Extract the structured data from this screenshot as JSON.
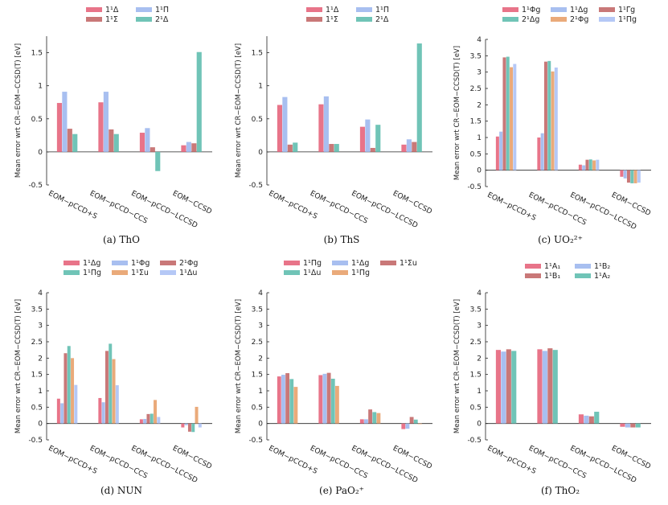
{
  "colors": {
    "pink": "#e87489",
    "lightblue": "#a8bff0",
    "rose": "#c97878",
    "teal": "#70c4b7",
    "orange": "#eaaa7a",
    "lavender": "#b5c8f6"
  },
  "chart_data": [
    {
      "type": "bar",
      "caption": "(a) ThO",
      "ylabel": "Mean error wrt CR−EOM−CCSD(T) [eV]",
      "ylim": [
        -0.5,
        1.75
      ],
      "yticks": [
        -0.5,
        0,
        0.5,
        1,
        1.5
      ],
      "yticklabels": [
        "-0.5",
        "0",
        "0.5",
        "1",
        "1.5"
      ],
      "categories": [
        "EOM−pCCD+S",
        "EOM−pCCD−CCS",
        "EOM−pCCD−LCCSD",
        "EOM−CCSD"
      ],
      "legend_ncol": 2,
      "series": [
        {
          "name": "1¹Δ",
          "color": "#e87489",
          "values": [
            0.74,
            0.75,
            0.29,
            0.1
          ]
        },
        {
          "name": "1¹Π",
          "color": "#a8bff0",
          "values": [
            0.91,
            0.91,
            0.36,
            0.15
          ]
        },
        {
          "name": "1¹Σ",
          "color": "#c97878",
          "values": [
            0.35,
            0.34,
            0.07,
            0.13
          ]
        },
        {
          "name": "2¹Δ",
          "color": "#70c4b7",
          "values": [
            0.27,
            0.27,
            -0.29,
            1.51
          ]
        }
      ]
    },
    {
      "type": "bar",
      "caption": "(b) ThS",
      "ylabel": "Mean error wrt CR−EOM−CCSD(T) [eV]",
      "ylim": [
        -0.5,
        1.75
      ],
      "yticks": [
        -0.5,
        0,
        0.5,
        1,
        1.5
      ],
      "yticklabels": [
        "-0.5",
        "0",
        "0.5",
        "1",
        "1.5"
      ],
      "categories": [
        "EOM−pCCD+S",
        "EOM−pCCD−CCS",
        "EOM−pCCD−LCCSD",
        "EOM−CCSD"
      ],
      "legend_ncol": 2,
      "series": [
        {
          "name": "1¹Δ",
          "color": "#e87489",
          "values": [
            0.71,
            0.72,
            0.38,
            0.11
          ]
        },
        {
          "name": "1¹Π",
          "color": "#a8bff0",
          "values": [
            0.83,
            0.84,
            0.49,
            0.19
          ]
        },
        {
          "name": "1¹Σ",
          "color": "#c97878",
          "values": [
            0.11,
            0.12,
            0.06,
            0.15
          ]
        },
        {
          "name": "2¹Δ",
          "color": "#70c4b7",
          "values": [
            0.14,
            0.12,
            0.41,
            1.64
          ]
        }
      ]
    },
    {
      "type": "bar",
      "caption": "(c) UO₂²⁺",
      "ylabel": "Mean error wrt CR−EOM−CCSD(T) [eV]",
      "ylim": [
        -0.5,
        4
      ],
      "yticks": [
        -0.5,
        0,
        0.5,
        1,
        1.5,
        2,
        2.5,
        3,
        3.5,
        4
      ],
      "yticklabels": [
        "-0.5",
        "0",
        "0.5",
        "1",
        "1.5",
        "2",
        "2.5",
        "3",
        "3.5",
        "4"
      ],
      "categories": [
        "EOM−pCCD+S",
        "EOM−pCCD−CCS",
        "EOM−pCCD−LCCSD",
        "EOM−CCSD"
      ],
      "legend_ncol": 3,
      "series": [
        {
          "name": "1¹Φg",
          "color": "#e87489",
          "values": [
            1.03,
            1.0,
            0.17,
            -0.2
          ]
        },
        {
          "name": "1¹Δg",
          "color": "#a8bff0",
          "values": [
            1.18,
            1.13,
            0.15,
            -0.25
          ]
        },
        {
          "name": "1¹Γg",
          "color": "#c97878",
          "values": [
            3.45,
            3.32,
            0.32,
            -0.38
          ]
        },
        {
          "name": "2¹Δg",
          "color": "#70c4b7",
          "values": [
            3.47,
            3.34,
            0.33,
            -0.4
          ]
        },
        {
          "name": "2¹Φg",
          "color": "#eaaa7a",
          "values": [
            3.15,
            3.02,
            0.3,
            -0.4
          ]
        },
        {
          "name": "1¹Πg",
          "color": "#b5c8f6",
          "values": [
            3.25,
            3.14,
            0.32,
            -0.38
          ]
        }
      ]
    },
    {
      "type": "bar",
      "caption": "(d) NUN",
      "ylabel": "Mean error wrt CR−EOM−CCSD(T) [eV]",
      "ylim": [
        -0.5,
        4
      ],
      "yticks": [
        -0.5,
        0,
        0.5,
        1,
        1.5,
        2,
        2.5,
        3,
        3.5,
        4
      ],
      "yticklabels": [
        "-0.5",
        "0",
        "0.5",
        "1",
        "1.5",
        "2",
        "2.5",
        "3",
        "3.5",
        "4"
      ],
      "categories": [
        "EOM−pCCD+S",
        "EOM−pCCD−CCS",
        "EOM−pCCD−LCCSD",
        "EOM−CCSD"
      ],
      "legend_ncol": 3,
      "series": [
        {
          "name": "1¹Δg",
          "color": "#e87489",
          "values": [
            0.76,
            0.78,
            0.13,
            -0.12
          ]
        },
        {
          "name": "1¹Φg",
          "color": "#a8bff0",
          "values": [
            0.62,
            0.65,
            0.14,
            -0.05
          ]
        },
        {
          "name": "2¹Φg",
          "color": "#c97878",
          "values": [
            2.15,
            2.22,
            0.29,
            -0.25
          ]
        },
        {
          "name": "1¹Πg",
          "color": "#70c4b7",
          "values": [
            2.37,
            2.44,
            0.3,
            -0.26
          ]
        },
        {
          "name": "1¹Σu",
          "color": "#eaaa7a",
          "values": [
            2.0,
            1.97,
            0.72,
            0.51
          ]
        },
        {
          "name": "1¹Δu",
          "color": "#b5c8f6",
          "values": [
            1.18,
            1.17,
            0.2,
            -0.12
          ]
        }
      ]
    },
    {
      "type": "bar",
      "caption": "(e) PaO₂⁺",
      "ylabel": "Mean error wrt CR−EOM−CCSD(T) [eV]",
      "ylim": [
        -0.5,
        4
      ],
      "yticks": [
        -0.5,
        0,
        0.5,
        1,
        1.5,
        2,
        2.5,
        3,
        3.5,
        4
      ],
      "yticklabels": [
        "-0.5",
        "0",
        "0.5",
        "1",
        "1.5",
        "2",
        "2.5",
        "3",
        "3.5",
        "4"
      ],
      "categories": [
        "EOM−pCCD+S",
        "EOM−pCCD−CCS",
        "EOM−pCCD−LCCSD",
        "EOM−CCSD"
      ],
      "legend_ncol": 3,
      "series": [
        {
          "name": "1¹Πg",
          "color": "#e87489",
          "values": [
            1.44,
            1.48,
            0.13,
            -0.17
          ]
        },
        {
          "name": "1¹Δg",
          "color": "#a8bff0",
          "values": [
            1.49,
            1.52,
            0.13,
            -0.16
          ]
        },
        {
          "name": "1¹Σu",
          "color": "#c97878",
          "values": [
            1.54,
            1.55,
            0.43,
            0.2
          ]
        },
        {
          "name": "1¹Δu",
          "color": "#70c4b7",
          "values": [
            1.36,
            1.37,
            0.35,
            0.12
          ]
        },
        {
          "name": "1¹Πg",
          "color": "#eaaa7a",
          "values": [
            1.12,
            1.15,
            0.32,
            -0.02
          ]
        }
      ]
    },
    {
      "type": "bar",
      "caption": "(f) ThO₂",
      "ylabel": "Mean error wrt CR−EOM−CCSD(T) [eV]",
      "ylim": [
        -0.5,
        4
      ],
      "yticks": [
        -0.5,
        0,
        0.5,
        1,
        1.5,
        2,
        2.5,
        3,
        3.5,
        4
      ],
      "yticklabels": [
        "-0.5",
        "0",
        "0.5",
        "1",
        "1.5",
        "2",
        "2.5",
        "3",
        "3.5",
        "4"
      ],
      "categories": [
        "EOM−pCCD+S",
        "EOM−pCCD−CCS",
        "EOM−pCCD−LCCSD",
        "EOM−CCSD"
      ],
      "legend_ncol": 2,
      "series": [
        {
          "name": "1¹A₁",
          "color": "#e87489",
          "values": [
            2.25,
            2.27,
            0.28,
            -0.1
          ]
        },
        {
          "name": "1¹B₂",
          "color": "#a8bff0",
          "values": [
            2.2,
            2.22,
            0.24,
            -0.12
          ]
        },
        {
          "name": "1¹B₁",
          "color": "#c97878",
          "values": [
            2.27,
            2.3,
            0.22,
            -0.12
          ]
        },
        {
          "name": "1¹A₂",
          "color": "#70c4b7",
          "values": [
            2.22,
            2.25,
            0.36,
            -0.12
          ]
        }
      ]
    }
  ]
}
